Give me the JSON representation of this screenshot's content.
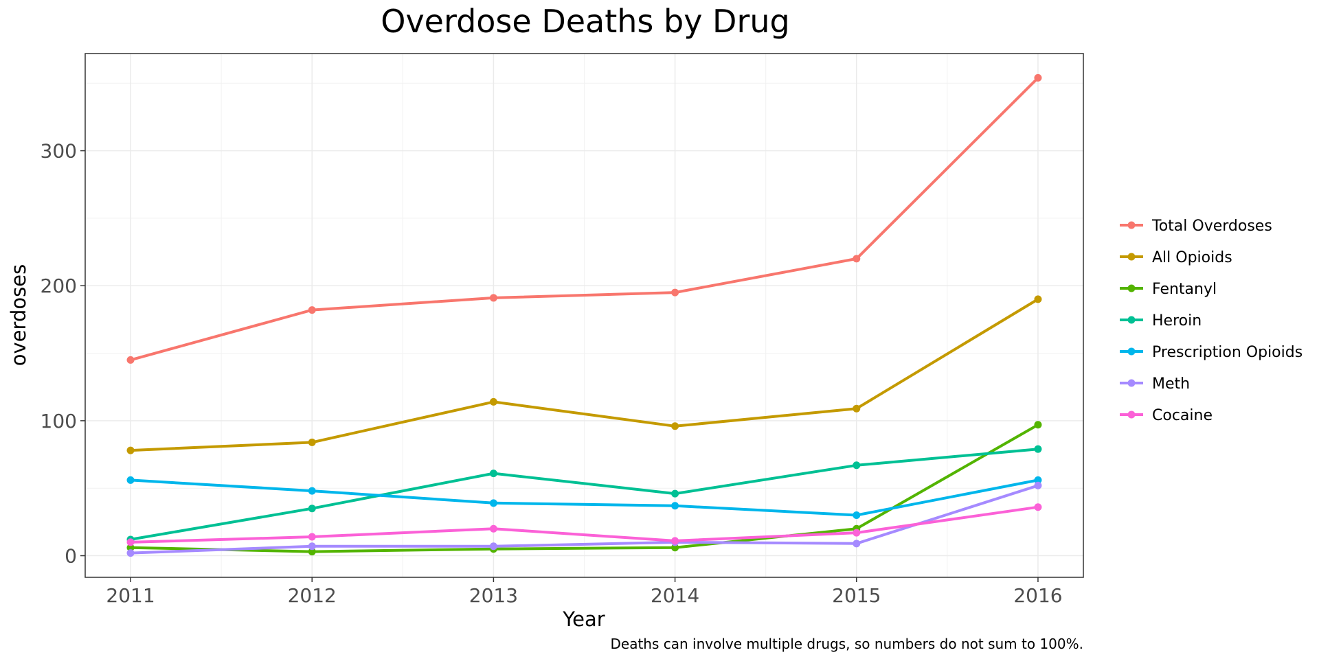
{
  "chart_data": {
    "type": "line",
    "title": "Overdose Deaths by Drug",
    "xlabel": "Year",
    "ylabel": "overdoses",
    "caption": "Deaths can involve multiple drugs, so numbers do not sum to 100%.",
    "x": [
      2011,
      2012,
      2013,
      2014,
      2015,
      2016
    ],
    "x_tick_labels": [
      "2011",
      "2012",
      "2013",
      "2014",
      "2015",
      "2016"
    ],
    "y_ticks": [
      0,
      100,
      200,
      300
    ],
    "y_tick_labels": [
      "0",
      "100",
      "200",
      "300"
    ],
    "xlim": [
      2010.75,
      2016.25
    ],
    "ylim": [
      -16,
      372
    ],
    "grid": true,
    "legend_position": "right",
    "series": [
      {
        "name": "Total Overdoses",
        "color": "#F8766D",
        "values": [
          145,
          182,
          191,
          195,
          220,
          354
        ]
      },
      {
        "name": "All Opioids",
        "color": "#C49A00",
        "values": [
          78,
          84,
          114,
          96,
          109,
          190
        ]
      },
      {
        "name": "Fentanyl",
        "color": "#53B400",
        "values": [
          6,
          3,
          5,
          6,
          20,
          97
        ]
      },
      {
        "name": "Heroin",
        "color": "#00C094",
        "values": [
          12,
          35,
          61,
          46,
          67,
          79
        ]
      },
      {
        "name": "Prescription Opioids",
        "color": "#00B6EB",
        "values": [
          56,
          48,
          39,
          37,
          30,
          56
        ]
      },
      {
        "name": "Meth",
        "color": "#A58AFF",
        "values": [
          2,
          7,
          7,
          10,
          9,
          52
        ]
      },
      {
        "name": "Cocaine",
        "color": "#FB61D7",
        "values": [
          10,
          14,
          20,
          11,
          17,
          36
        ]
      }
    ]
  }
}
